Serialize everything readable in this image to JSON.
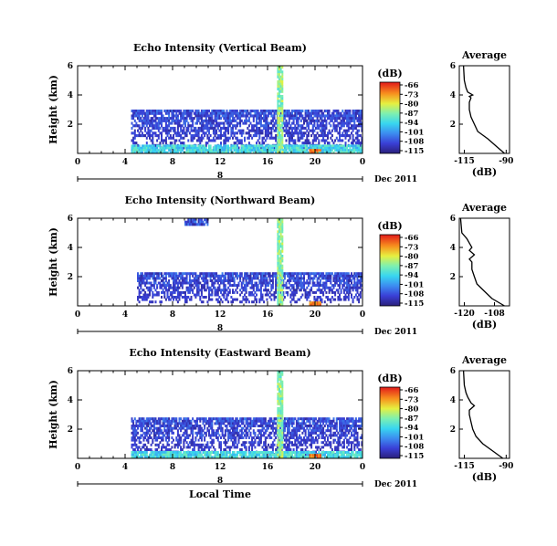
{
  "chart_data": [
    {
      "type": "heatmap",
      "title": "Echo Intensity (Vertical Beam)",
      "ylabel": "Height (km)",
      "x_ticks": [
        "0",
        "4",
        "8",
        "12",
        "16",
        "20",
        "0"
      ],
      "xlim": [
        0,
        24
      ],
      "y_ticks": [
        "6",
        "4",
        "2"
      ],
      "ylim": [
        0,
        6
      ],
      "date_label": "Dec 2011",
      "day_marker": "8",
      "colorbar": {
        "unit": "(dB)",
        "ticks": [
          "-66",
          "-73",
          "-80",
          "-87",
          "-94",
          "-101",
          "-108",
          "-115"
        ],
        "range": [
          -115,
          -66
        ]
      },
      "average": {
        "title": "Average",
        "xlabel": "(dB)",
        "x_ticks": [
          "-115",
          "-90"
        ],
        "xlim": [
          -118,
          -88
        ],
        "y_ticks": [
          "6",
          "4",
          "2"
        ],
        "ylim": [
          0,
          6
        ],
        "height": [
          6.0,
          5.0,
          4.5,
          4.2,
          4.0,
          3.9,
          3.8,
          3.5,
          3.0,
          2.5,
          2.0,
          1.5,
          1.0,
          0.5,
          0.0
        ],
        "db": [
          -115.5,
          -115,
          -114,
          -113,
          -110,
          -112,
          -111,
          -112,
          -112,
          -111,
          -109,
          -107,
          -101,
          -96,
          -91
        ]
      },
      "echo_regions": [
        {
          "t0": 4.5,
          "t1": 24,
          "h0": 0.3,
          "h1": 3.0,
          "level": -108
        },
        {
          "t0": 4.5,
          "t1": 24,
          "h0": 0.0,
          "h1": 0.6,
          "level": -94
        },
        {
          "t0": 16.8,
          "t1": 17.3,
          "h0": 0,
          "h1": 6,
          "level": -87
        },
        {
          "t0": 19.5,
          "t1": 20.5,
          "h0": 0.0,
          "h1": 0.3,
          "level": -73
        }
      ]
    },
    {
      "type": "heatmap",
      "title": "Echo Intensity (Northward Beam)",
      "ylabel": "Height (km)",
      "x_ticks": [
        "0",
        "4",
        "8",
        "12",
        "16",
        "20",
        "0"
      ],
      "xlim": [
        0,
        24
      ],
      "y_ticks": [
        "6",
        "4",
        "2"
      ],
      "ylim": [
        0,
        6
      ],
      "date_label": "Dec 2011",
      "day_marker": "8",
      "colorbar": {
        "unit": "(dB)",
        "ticks": [
          "-66",
          "-73",
          "-80",
          "-87",
          "-94",
          "-101",
          "-108",
          "-115"
        ],
        "range": [
          -115,
          -66
        ]
      },
      "average": {
        "title": "Average",
        "xlabel": "(dB)",
        "x_ticks": [
          "-120",
          "-108"
        ],
        "xlim": [
          -122,
          -102
        ],
        "y_ticks": [
          "6",
          "4",
          "2"
        ],
        "ylim": [
          0,
          6
        ],
        "height": [
          6.0,
          5.0,
          4.6,
          4.3,
          4.0,
          3.8,
          3.5,
          3.2,
          3.0,
          2.5,
          2.0,
          1.5,
          1.0,
          0.5,
          0.0
        ],
        "db": [
          -121.5,
          -121,
          -119,
          -118,
          -117,
          -118,
          -116,
          -118,
          -117,
          -117,
          -116,
          -115,
          -112,
          -109,
          -104
        ]
      },
      "echo_regions": [
        {
          "t0": 5,
          "t1": 24,
          "h0": 0.2,
          "h1": 2.3,
          "level": -108
        },
        {
          "t0": 9,
          "t1": 11,
          "h0": 6.0,
          "h1": 5.5,
          "level": -108
        },
        {
          "t0": 16.8,
          "t1": 17.3,
          "h0": 0,
          "h1": 6,
          "level": -87
        },
        {
          "t0": 19.5,
          "t1": 20.5,
          "h0": 0.0,
          "h1": 0.3,
          "level": -73
        }
      ]
    },
    {
      "type": "heatmap",
      "title": "Echo Intensity (Eastward Beam)",
      "ylabel": "Height (km)",
      "x_ticks": [
        "0",
        "4",
        "8",
        "12",
        "16",
        "20",
        "0"
      ],
      "xlim": [
        0,
        24
      ],
      "y_ticks": [
        "6",
        "4",
        "2"
      ],
      "ylim": [
        0,
        6
      ],
      "date_label": "Dec 2011",
      "day_marker": "8",
      "xlabel": "Local Time",
      "colorbar": {
        "unit": "(dB)",
        "ticks": [
          "-66",
          "-73",
          "-80",
          "-87",
          "-94",
          "-101",
          "-108",
          "-115"
        ],
        "range": [
          -115,
          -66
        ]
      },
      "average": {
        "title": "Average",
        "xlabel": "(dB)",
        "x_ticks": [
          "-115",
          "-90"
        ],
        "xlim": [
          -118,
          -88
        ],
        "y_ticks": [
          "6",
          "4",
          "2"
        ],
        "ylim": [
          0,
          6
        ],
        "height": [
          6.0,
          5.0,
          4.5,
          4.2,
          4.0,
          3.8,
          3.6,
          3.3,
          3.0,
          2.5,
          2.0,
          1.5,
          1.0,
          0.5,
          0.0
        ],
        "db": [
          -115.5,
          -115,
          -114,
          -113,
          -112,
          -111,
          -109,
          -112,
          -112,
          -111,
          -110,
          -108,
          -104,
          -98,
          -92
        ]
      },
      "echo_regions": [
        {
          "t0": 4.5,
          "t1": 24,
          "h0": 0.2,
          "h1": 2.8,
          "level": -108
        },
        {
          "t0": 4.5,
          "t1": 24,
          "h0": 0.0,
          "h1": 0.5,
          "level": -94
        },
        {
          "t0": 16.8,
          "t1": 17.3,
          "h0": 0,
          "h1": 6,
          "level": -87
        },
        {
          "t0": 19.5,
          "t1": 20.5,
          "h0": 0.0,
          "h1": 0.3,
          "level": -73
        }
      ]
    }
  ]
}
